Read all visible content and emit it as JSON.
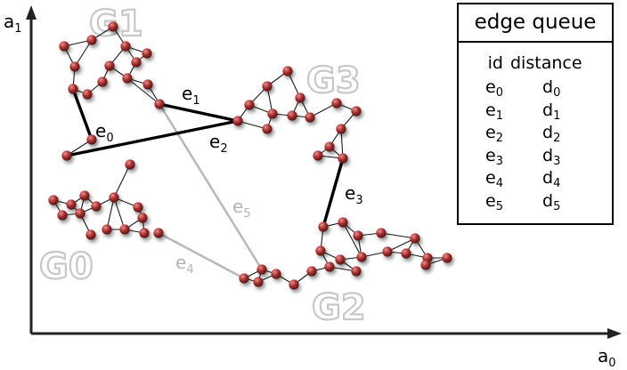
{
  "axes": {
    "x_label": "a",
    "x_sub": "0",
    "y_label": "a",
    "y_sub": "1"
  },
  "graph_labels": [
    "G1",
    "G0",
    "G3",
    "G2"
  ],
  "edges": [
    {
      "id": "e0",
      "style": "bold"
    },
    {
      "id": "e1",
      "style": "bold"
    },
    {
      "id": "e2",
      "style": "bold"
    },
    {
      "id": "e3",
      "style": "bold"
    },
    {
      "id": "e4",
      "style": "faint"
    },
    {
      "id": "e5",
      "style": "faint"
    }
  ],
  "edge_labels": {
    "e0": {
      "base": "e",
      "sub": "0"
    },
    "e1": {
      "base": "e",
      "sub": "1"
    },
    "e2": {
      "base": "e",
      "sub": "2"
    },
    "e3": {
      "base": "e",
      "sub": "3"
    },
    "e4": {
      "base": "e",
      "sub": "4"
    },
    "e5": {
      "base": "e",
      "sub": "5"
    }
  },
  "queue": {
    "title": "edge queue",
    "col_id": "id",
    "col_distance": "distance",
    "rows": [
      {
        "id_base": "e",
        "id_sub": "0",
        "d_base": "d",
        "d_sub": "0"
      },
      {
        "id_base": "e",
        "id_sub": "1",
        "d_base": "d",
        "d_sub": "1"
      },
      {
        "id_base": "e",
        "id_sub": "2",
        "d_base": "d",
        "d_sub": "2"
      },
      {
        "id_base": "e",
        "id_sub": "3",
        "d_base": "d",
        "d_sub": "3"
      },
      {
        "id_base": "e",
        "id_sub": "4",
        "d_base": "d",
        "d_sub": "4"
      },
      {
        "id_base": "e",
        "id_sub": "5",
        "d_base": "d",
        "d_sub": "5"
      }
    ]
  },
  "colors": {
    "node": "#9b2a2a",
    "node_highlight": "#e08080",
    "bold_edge": "#000000",
    "faint_edge": "#b9b9b9",
    "thin_edge": "#1a1a1a"
  }
}
